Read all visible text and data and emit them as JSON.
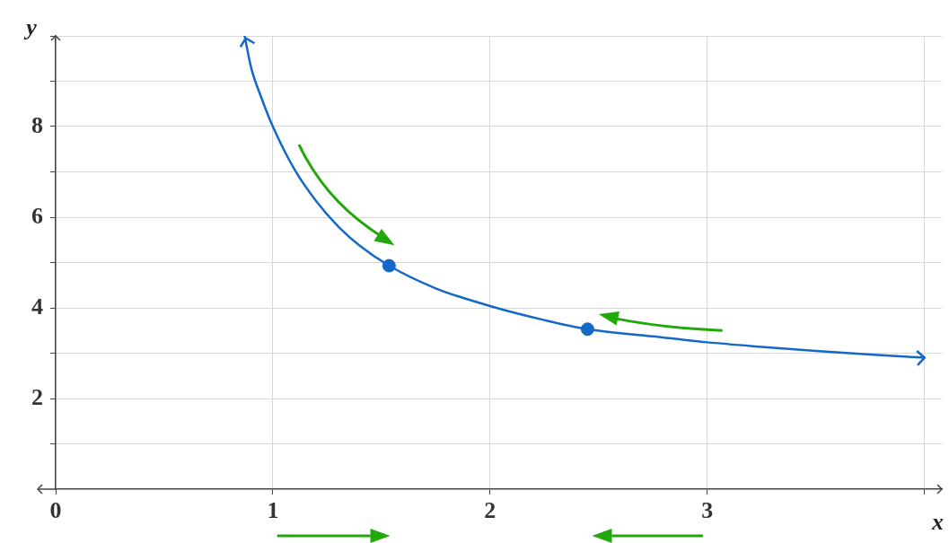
{
  "chart_data": {
    "type": "line",
    "xlabel": "x",
    "ylabel": "y",
    "xlim": [
      0,
      4.08
    ],
    "ylim": [
      0,
      10
    ],
    "xticks": [
      0,
      1,
      2,
      3,
      {
        "value": 4,
        "label": null
      }
    ],
    "yticks": [
      {
        "value": 1,
        "label": null
      },
      2,
      {
        "value": 3,
        "label": null
      },
      4,
      {
        "value": 5,
        "label": null
      },
      6,
      {
        "value": 7,
        "label": null
      },
      8,
      {
        "value": 9,
        "label": null
      },
      {
        "value": 10,
        "label": null
      }
    ],
    "grid": true,
    "series": [
      {
        "type": "line",
        "color": "#1468c8",
        "marker": "none",
        "x": [
          0.87,
          0.9,
          0.95,
          1,
          1.1,
          1.2,
          1.3,
          1.4,
          1.535,
          1.75,
          2,
          2.25,
          2.449,
          2.75,
          3,
          3.25,
          3.5,
          3.75,
          4
        ],
        "values": [
          10,
          9.3,
          8.6,
          8,
          7.05,
          6.35,
          5.8,
          5.37,
          4.93,
          4.43,
          4.04,
          3.73,
          3.53,
          3.37,
          3.24,
          3.14,
          3.05,
          2.97,
          2.9
        ]
      },
      {
        "type": "scatter",
        "color": "#1468c8",
        "marker": "circle",
        "x": [
          1.535,
          2.449
        ],
        "values": [
          4.93,
          3.53
        ]
      }
    ]
  }
}
